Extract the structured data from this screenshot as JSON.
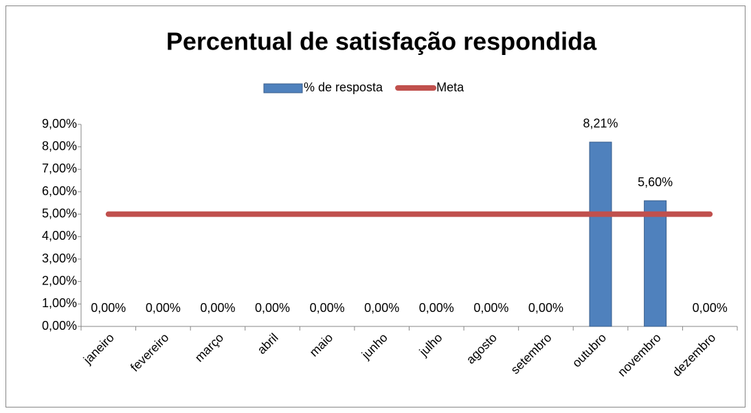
{
  "chart_data": {
    "type": "bar",
    "title": "Percentual de satisfação respondida",
    "categories": [
      "janeiro",
      "fevereiro",
      "março",
      "abril",
      "maio",
      "junho",
      "julho",
      "agosto",
      "setembro",
      "outubro",
      "novembro",
      "dezembro"
    ],
    "series": [
      {
        "name": "% de resposta",
        "type": "bar",
        "color": "#4f81bd",
        "values": [
          0,
          0,
          0,
          0,
          0,
          0,
          0,
          0,
          0,
          8.21,
          5.6,
          0
        ],
        "value_labels": [
          "0,00%",
          "0,00%",
          "0,00%",
          "0,00%",
          "0,00%",
          "0,00%",
          "0,00%",
          "0,00%",
          "0,00%",
          "8,21%",
          "5,60%",
          "0,00%"
        ]
      },
      {
        "name": "Meta",
        "type": "line",
        "color": "#c0504d",
        "values": [
          5,
          5,
          5,
          5,
          5,
          5,
          5,
          5,
          5,
          5,
          5,
          5
        ]
      }
    ],
    "ylim": [
      0,
      9
    ],
    "yticks": [
      {
        "value": 0,
        "label": "0,00%"
      },
      {
        "value": 1,
        "label": "1,00%"
      },
      {
        "value": 2,
        "label": "2,00%"
      },
      {
        "value": 3,
        "label": "3,00%"
      },
      {
        "value": 4,
        "label": "4,00%"
      },
      {
        "value": 5,
        "label": "5,00%"
      },
      {
        "value": 6,
        "label": "6,00%"
      },
      {
        "value": 7,
        "label": "7,00%"
      },
      {
        "value": 8,
        "label": "8,00%"
      },
      {
        "value": 9,
        "label": "9,00%"
      }
    ],
    "grid": false,
    "legend": "top"
  }
}
